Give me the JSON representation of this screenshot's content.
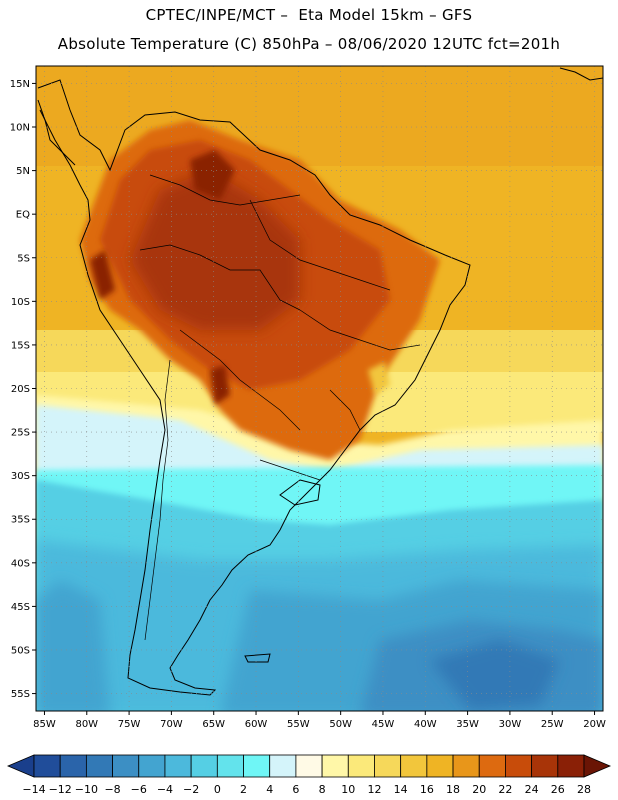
{
  "title": {
    "line1": "CPTEC/INPE/MCT –  Eta Model 15km – GFS",
    "line2": "Absolute Temperature (C) 850hPa – 08/06/2020 12UTC fct=201h"
  },
  "map": {
    "lat_labels": [
      "15N",
      "10N",
      "5N",
      "EQ",
      "5S",
      "10S",
      "15S",
      "20S",
      "25S",
      "30S",
      "35S",
      "40S",
      "45S",
      "50S",
      "55S"
    ],
    "lon_labels": [
      "85W",
      "80W",
      "75W",
      "70W",
      "65W",
      "60W",
      "55W",
      "50W",
      "45W",
      "40W",
      "35W",
      "30W",
      "25W",
      "20W"
    ],
    "lon_range": [
      -86,
      -19
    ],
    "lat_range": [
      17,
      -57
    ]
  },
  "colorbar": {
    "labels": [
      "-14",
      "-12",
      "-10",
      "-8",
      "-6",
      "-4",
      "-2",
      "0",
      "2",
      "4",
      "6",
      "8",
      "10",
      "12",
      "14",
      "16",
      "18",
      "20",
      "22",
      "24",
      "26",
      "28"
    ],
    "colors": [
      "#1a3f8c",
      "#204d9a",
      "#2a64aa",
      "#3279b6",
      "#3c8fc4",
      "#43a4d0",
      "#4cb9dc",
      "#55cfe4",
      "#63e3ec",
      "#6ff6f6",
      "#d4f4fa",
      "#fffae6",
      "#fff7a8",
      "#fbe97a",
      "#f6d85a",
      "#f2c63c",
      "#efb424",
      "#e8961a",
      "#dd6a10",
      "#c84c0a",
      "#a83408",
      "#8a2006",
      "#6a1505"
    ]
  }
}
